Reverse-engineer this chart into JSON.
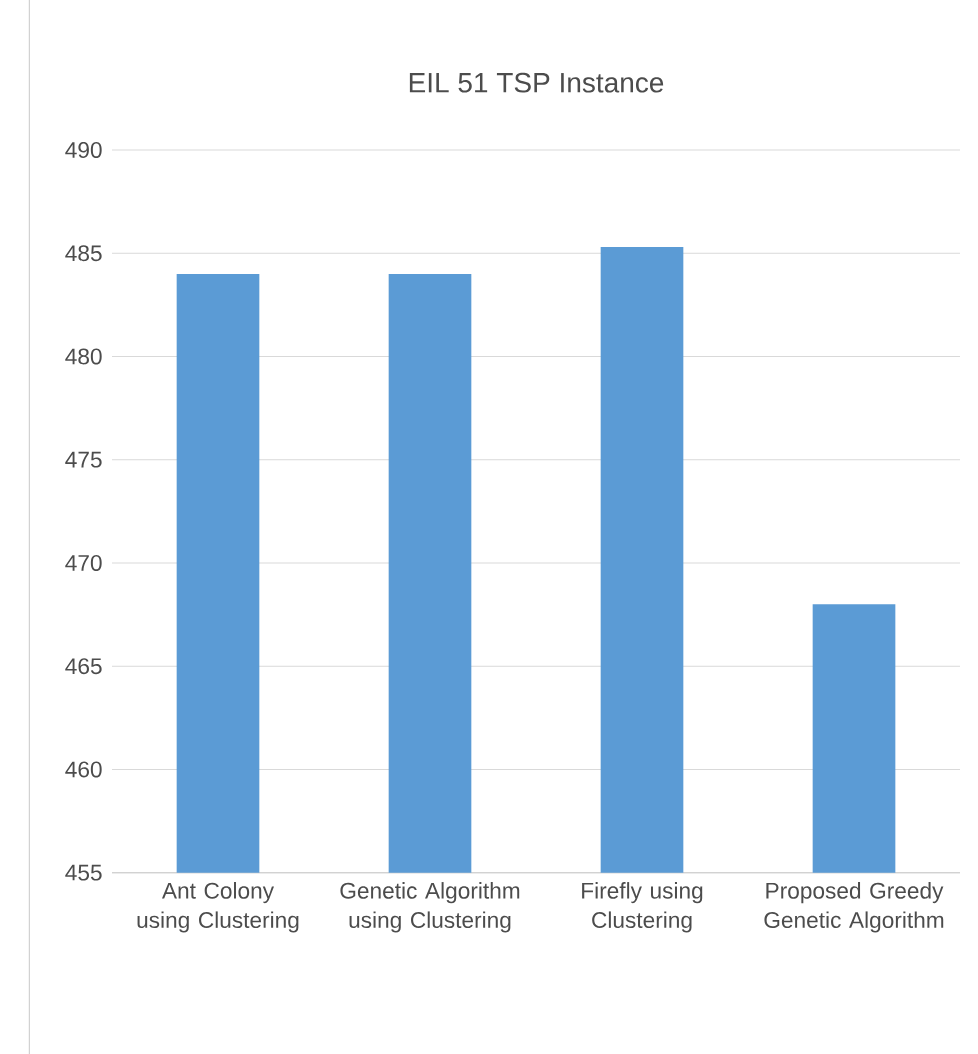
{
  "chart_data": {
    "type": "bar",
    "title": "EIL 51 TSP Instance",
    "categories": [
      "Ant Colony using Clustering",
      "Genetic Algorithm using Clustering",
      "Firefly using Clustering",
      "Proposed Greedy Genetic Algorithm"
    ],
    "values": [
      484,
      484,
      485.3,
      468
    ],
    "color": "#5b9bd5",
    "ylim": [
      455,
      490
    ],
    "yticks": [
      455,
      460,
      465,
      470,
      475,
      480,
      485,
      490
    ],
    "grid": "y"
  }
}
